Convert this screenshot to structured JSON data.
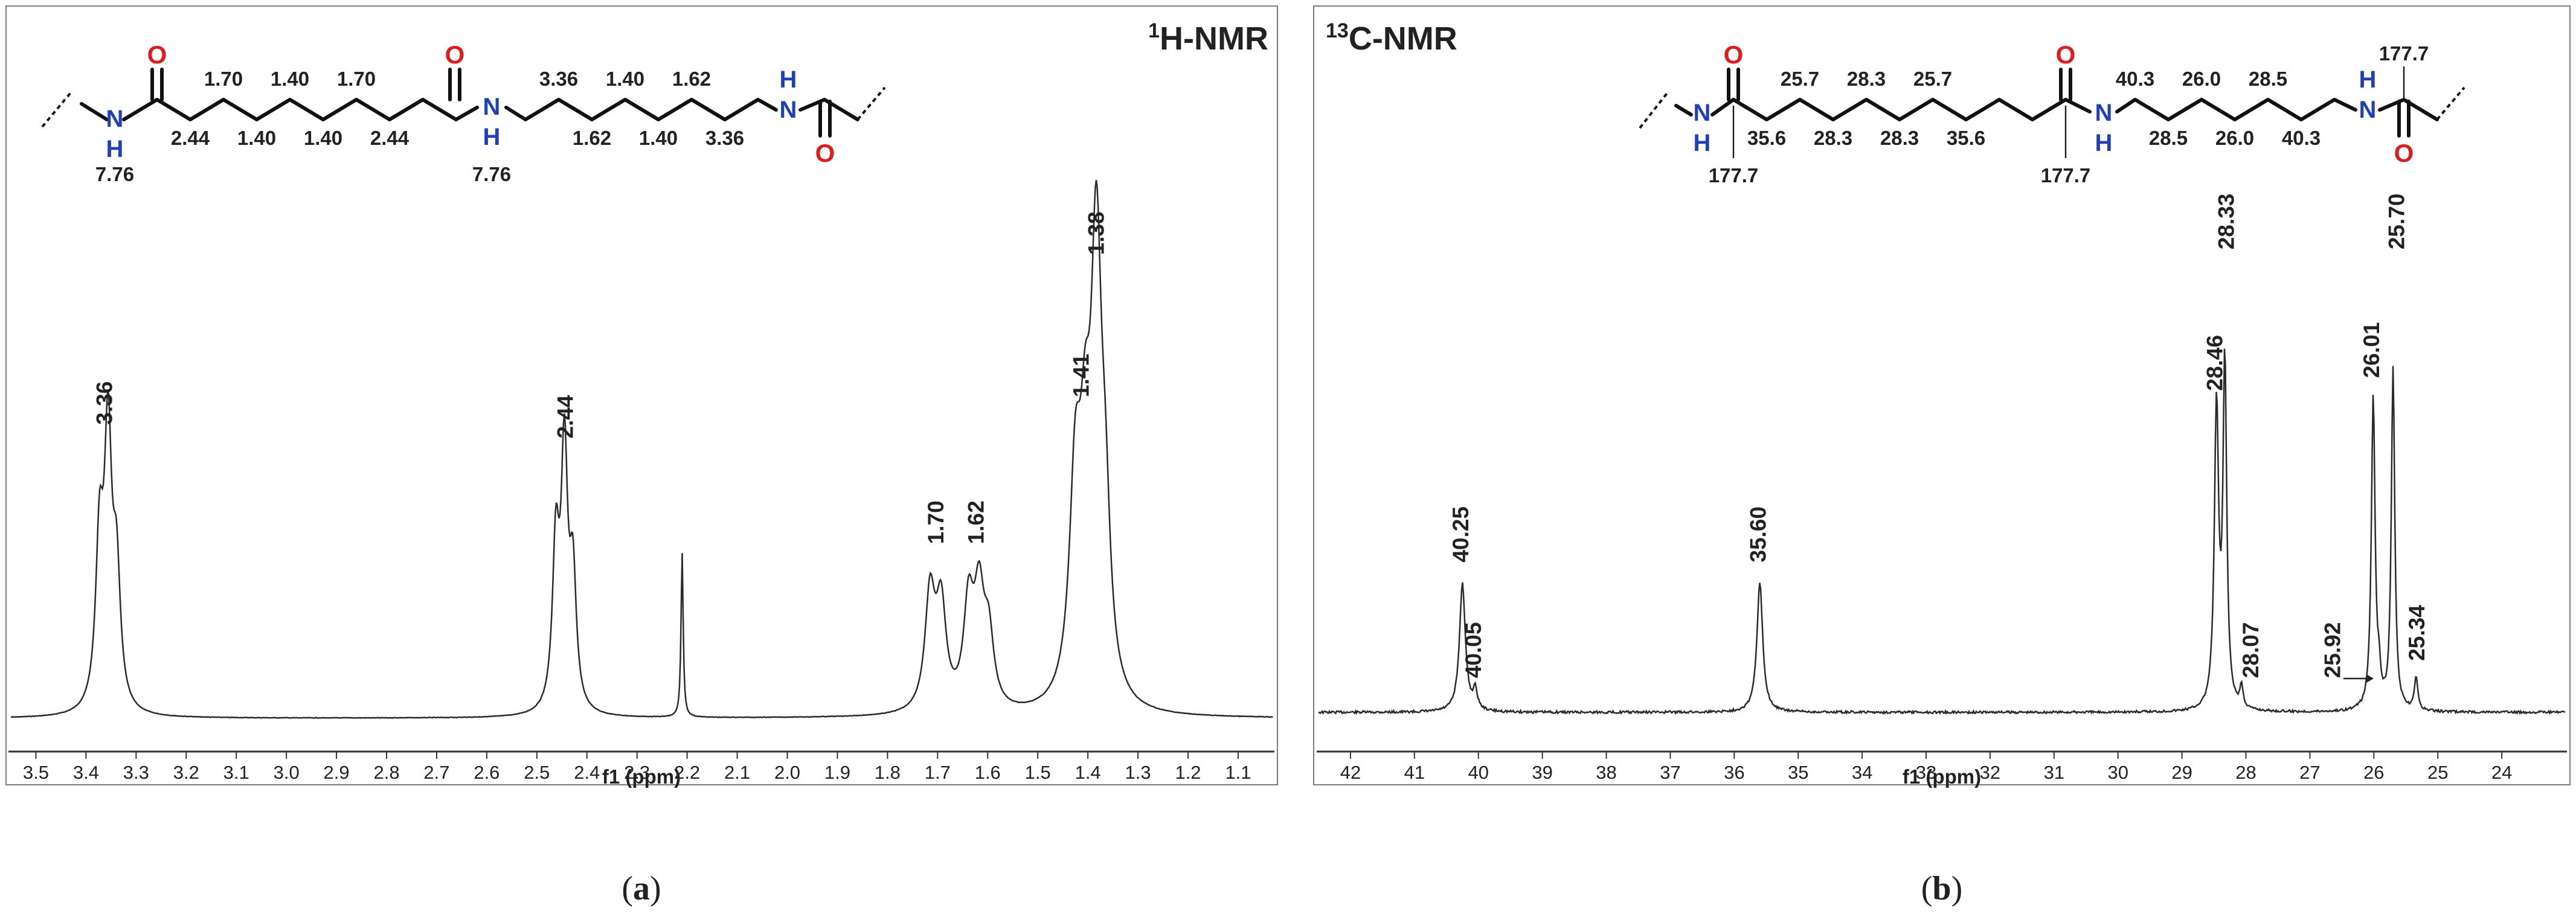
{
  "colors": {
    "nitrogen": "#1f3fbf",
    "oxygen": "#e01b1b",
    "trace": "#2b2b2b"
  },
  "chart_data": [
    {
      "type": "line",
      "panel": "a",
      "title_sup": "1",
      "title": "H-NMR",
      "xlabel": "f1 (ppm)",
      "xlim": [
        3.55,
        1.03
      ],
      "x_reversed": true,
      "xticks": [
        3.5,
        3.4,
        3.3,
        3.2,
        3.1,
        3.0,
        2.9,
        2.8,
        2.7,
        2.6,
        2.5,
        2.4,
        2.3,
        2.2,
        2.1,
        2.0,
        1.9,
        1.8,
        1.7,
        1.6,
        1.5,
        1.4,
        1.3,
        1.2,
        1.1
      ],
      "xtick_labels": [
        "3.5",
        "3.4",
        "3.3",
        "3.2",
        "3.1",
        "3.0",
        "2.9",
        "2.8",
        "2.7",
        "2.6",
        "2.5",
        "2.4",
        "2.3",
        "2.2",
        "2.1",
        "2.0",
        "1.9",
        "1.8",
        "1.7",
        "1.6",
        "1.5",
        "1.4",
        "1.3",
        "1.2",
        "1.1"
      ],
      "grid": false,
      "peaks": [
        {
          "shift": 3.373,
          "height": 0.35,
          "width": 0.009
        },
        {
          "shift": 3.356,
          "height": 0.58,
          "width": 0.009
        },
        {
          "shift": 3.339,
          "height": 0.28,
          "width": 0.009
        },
        {
          "shift": 2.462,
          "height": 0.35,
          "width": 0.008
        },
        {
          "shift": 2.445,
          "height": 0.55,
          "width": 0.008
        },
        {
          "shift": 2.428,
          "height": 0.28,
          "width": 0.008
        },
        {
          "shift": 2.21,
          "height": 0.36,
          "width": 0.0025
        },
        {
          "shift": 1.715,
          "height": 0.25,
          "width": 0.012
        },
        {
          "shift": 1.693,
          "height": 0.22,
          "width": 0.012
        },
        {
          "shift": 1.638,
          "height": 0.22,
          "width": 0.012
        },
        {
          "shift": 1.617,
          "height": 0.23,
          "width": 0.012
        },
        {
          "shift": 1.598,
          "height": 0.15,
          "width": 0.012
        },
        {
          "shift": 1.425,
          "height": 0.45,
          "width": 0.014
        },
        {
          "shift": 1.405,
          "height": 0.4,
          "width": 0.013
        },
        {
          "shift": 1.383,
          "height": 0.93,
          "width": 0.013
        },
        {
          "shift": 1.365,
          "height": 0.3,
          "width": 0.012
        }
      ],
      "annotations": [
        {
          "text": "3.36",
          "x": 3.36,
          "y": 0.64
        },
        {
          "text": "2.44",
          "x": 2.44,
          "y": 0.61
        },
        {
          "text": "1.70",
          "x": 1.7,
          "y": 0.38
        },
        {
          "text": "1.62",
          "x": 1.62,
          "y": 0.38
        },
        {
          "text": "1.41",
          "x": 1.41,
          "y": 0.7
        },
        {
          "text": "1.38",
          "x": 1.38,
          "y": 1.01
        }
      ]
    },
    {
      "type": "line",
      "panel": "b",
      "title_sup": "13",
      "title": "C-NMR",
      "xlabel": "f1 (ppm)",
      "xlim": [
        42.5,
        23.0
      ],
      "x_reversed": true,
      "xticks": [
        42,
        41,
        40,
        39,
        38,
        37,
        36,
        35,
        34,
        33,
        32,
        31,
        30,
        29,
        28,
        27,
        26,
        25,
        24
      ],
      "xtick_labels": [
        "42",
        "41",
        "40",
        "39",
        "38",
        "37",
        "36",
        "35",
        "34",
        "33",
        "32",
        "31",
        "30",
        "29",
        "28",
        "27",
        "26",
        "25",
        "24"
      ],
      "grid": false,
      "peaks": [
        {
          "shift": 40.25,
          "height": 0.3,
          "width": 0.055
        },
        {
          "shift": 40.05,
          "height": 0.045,
          "width": 0.04
        },
        {
          "shift": 35.6,
          "height": 0.3,
          "width": 0.055
        },
        {
          "shift": 28.46,
          "height": 0.7,
          "width": 0.04
        },
        {
          "shift": 28.33,
          "height": 0.8,
          "width": 0.035
        },
        {
          "shift": 28.07,
          "height": 0.05,
          "width": 0.03
        },
        {
          "shift": 26.01,
          "height": 0.73,
          "width": 0.035
        },
        {
          "shift": 25.92,
          "height": 0.06,
          "width": 0.03
        },
        {
          "shift": 25.7,
          "height": 0.8,
          "width": 0.032
        },
        {
          "shift": 25.34,
          "height": 0.08,
          "width": 0.03
        }
      ],
      "annotations": [
        {
          "text": "40.25",
          "x": 40.25,
          "y": 0.35
        },
        {
          "text": "40.05",
          "x": 40.05,
          "y": 0.08
        },
        {
          "text": "35.60",
          "x": 35.6,
          "y": 0.35
        },
        {
          "text": "28.46",
          "x": 28.46,
          "y": 0.75
        },
        {
          "text": "28.33",
          "x": 28.28,
          "y": 1.08
        },
        {
          "text": "28.07",
          "x": 27.9,
          "y": 0.08
        },
        {
          "text": "25.92",
          "x": 26.62,
          "y": 0.08
        },
        {
          "text": "26.01",
          "x": 26.01,
          "y": 0.78
        },
        {
          "text": "25.70",
          "x": 25.62,
          "y": 1.08
        },
        {
          "text": "25.34",
          "x": 25.3,
          "y": 0.12
        }
      ]
    }
  ],
  "structure_a": {
    "shifts_top": [
      "1.70",
      "1.40",
      "1.70",
      "3.36",
      "1.40",
      "1.62"
    ],
    "shifts_bottom": [
      "2.44",
      "1.40",
      "1.40",
      "2.44",
      "1.62",
      "1.40",
      "3.36"
    ],
    "nh_shifts": [
      "7.76",
      "7.76"
    ]
  },
  "structure_b": {
    "shifts_top": [
      "25.7",
      "28.3",
      "25.7",
      "40.3",
      "26.0",
      "28.5",
      "177.7"
    ],
    "shifts_bottom": [
      "35.6",
      "28.3",
      "28.3",
      "35.6",
      "28.5",
      "26.0",
      "40.3"
    ],
    "carbonyl_shifts": [
      "177.7",
      "177.7"
    ]
  },
  "captions": {
    "a": "a",
    "b": "b"
  }
}
